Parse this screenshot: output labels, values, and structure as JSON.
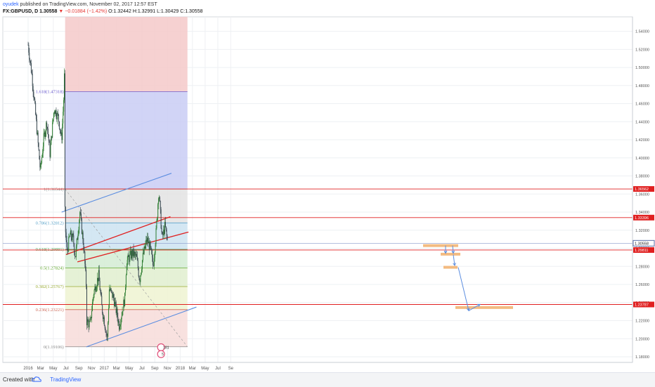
{
  "header": {
    "user": "oyudek",
    "published": "published on TradingView.com, November 02, 2017 12:57 EST",
    "symbol": "FX:GBPUSD, D",
    "last": "1.30558",
    "change": "▼ −0.01884 (−1.42%)",
    "o_label": "O:",
    "o": "1.32442",
    "h_label": "H:",
    "h": "1.32991",
    "l_label": "L:",
    "l": "1.30429",
    "c_label": "C:",
    "c": "1.30558"
  },
  "footer": {
    "created_with": "Created with",
    "brand": "TradingView"
  },
  "colors": {
    "fib_top": "#f4c9c9",
    "fib_1618": "#c9cdf4",
    "fib_1": "#e3e3e3",
    "fib_786": "#cde3f1",
    "fib_618": "#d4ecd4",
    "fib_5": "#e1efcf",
    "fib_382": "#eef3d1",
    "fib_236": "#f7dcd9",
    "fib_0": "#f4cfcf",
    "up": "#2e7d32",
    "down": "#37474f",
    "red_line": "#e02020",
    "blue_line": "#5b8de0",
    "orange": "#f2b77a"
  },
  "chart_data": {
    "type": "candlestick",
    "symbol": "FX:GBPUSD",
    "timeframe": "D",
    "x_tick_labels": [
      "2016",
      "Mar",
      "May",
      "Jul",
      "Sep",
      "Nov",
      "2017",
      "Mar",
      "May",
      "Jul",
      "Sep",
      "Nov",
      "2018",
      "Mar",
      "May",
      "Jul",
      "Se"
    ],
    "y_tick_labels": [
      "1.54000",
      "1.52000",
      "1.50000",
      "1.48000",
      "1.46000",
      "1.44000",
      "1.42000",
      "1.40000",
      "1.38000",
      "1.36000",
      "1.34000",
      "1.32000",
      "1.30000",
      "1.28000",
      "1.26000",
      "1.24000",
      "1.22000",
      "1.20000",
      "1.18000"
    ],
    "ylim": [
      1.17,
      1.55
    ],
    "fib_levels": [
      {
        "ratio": "1.618",
        "label": "1.618(1.47318)",
        "price": 1.47318
      },
      {
        "ratio": "1",
        "label": "1(1.36544)",
        "price": 1.36544
      },
      {
        "ratio": "0.786",
        "label": "0.786(1.32812)",
        "price": 1.32812
      },
      {
        "ratio": "0.618",
        "label": "0.618(1.29881)",
        "price": 1.29881
      },
      {
        "ratio": "0.5",
        "label": "0.5(1.27824)",
        "price": 1.27824
      },
      {
        "ratio": "0.382",
        "label": "0.382(1.25767)",
        "price": 1.25767
      },
      {
        "ratio": "0.236",
        "label": "0.236(1.23221)",
        "price": 1.23221
      },
      {
        "ratio": "0",
        "label": "0(1.19106)",
        "price": 1.19106
      }
    ],
    "horizontal_lines": [
      {
        "label": "1.36562",
        "price": 1.36562
      },
      {
        "label": "1.33396",
        "price": 1.33396
      },
      {
        "label": "1.29811",
        "price": 1.29811
      },
      {
        "label": "1.23787",
        "price": 1.23787
      }
    ],
    "last_price": {
      "label": "1.30558",
      "price": 1.30558
    },
    "event_markers": [
      "181",
      "5"
    ],
    "price_path": [
      {
        "x": "2016-01-01",
        "y": 1.525
      },
      {
        "x": "2016-01-20",
        "y": 1.49
      },
      {
        "x": "2016-02-05",
        "y": 1.45
      },
      {
        "x": "2016-02-20",
        "y": 1.41
      },
      {
        "x": "2016-02-29",
        "y": 1.385
      },
      {
        "x": "2016-03-15",
        "y": 1.42
      },
      {
        "x": "2016-03-31",
        "y": 1.44
      },
      {
        "x": "2016-04-15",
        "y": 1.405
      },
      {
        "x": "2016-05-05",
        "y": 1.455
      },
      {
        "x": "2016-05-25",
        "y": 1.445
      },
      {
        "x": "2016-06-10",
        "y": 1.42
      },
      {
        "x": "2016-06-20",
        "y": 1.465
      },
      {
        "x": "2016-06-23",
        "y": 1.49
      },
      {
        "x": "2016-06-24",
        "y": 1.37
      },
      {
        "x": "2016-06-27",
        "y": 1.325
      },
      {
        "x": "2016-07-06",
        "y": 1.295
      },
      {
        "x": "2016-07-20",
        "y": 1.315
      },
      {
        "x": "2016-08-05",
        "y": 1.31
      },
      {
        "x": "2016-08-15",
        "y": 1.29
      },
      {
        "x": "2016-09-06",
        "y": 1.34
      },
      {
        "x": "2016-09-25",
        "y": 1.3
      },
      {
        "x": "2016-10-06",
        "y": 1.26
      },
      {
        "x": "2016-10-07",
        "y": 1.22
      },
      {
        "x": "2016-10-25",
        "y": 1.215
      },
      {
        "x": "2016-11-10",
        "y": 1.25
      },
      {
        "x": "2016-12-05",
        "y": 1.27
      },
      {
        "x": "2016-12-20",
        "y": 1.235
      },
      {
        "x": "2017-01-16",
        "y": 1.2
      },
      {
        "x": "2017-01-25",
        "y": 1.255
      },
      {
        "x": "2017-02-15",
        "y": 1.245
      },
      {
        "x": "2017-03-14",
        "y": 1.215
      },
      {
        "x": "2017-04-10",
        "y": 1.245
      },
      {
        "x": "2017-04-18",
        "y": 1.285
      },
      {
        "x": "2017-05-17",
        "y": 1.295
      },
      {
        "x": "2017-06-05",
        "y": 1.29
      },
      {
        "x": "2017-06-20",
        "y": 1.265
      },
      {
        "x": "2017-07-05",
        "y": 1.29
      },
      {
        "x": "2017-07-25",
        "y": 1.31
      },
      {
        "x": "2017-08-10",
        "y": 1.3
      },
      {
        "x": "2017-08-24",
        "y": 1.28
      },
      {
        "x": "2017-09-08",
        "y": 1.32
      },
      {
        "x": "2017-09-20",
        "y": 1.365
      },
      {
        "x": "2017-10-06",
        "y": 1.31
      },
      {
        "x": "2017-10-20",
        "y": 1.325
      },
      {
        "x": "2017-11-02",
        "y": 1.3056
      }
    ]
  }
}
